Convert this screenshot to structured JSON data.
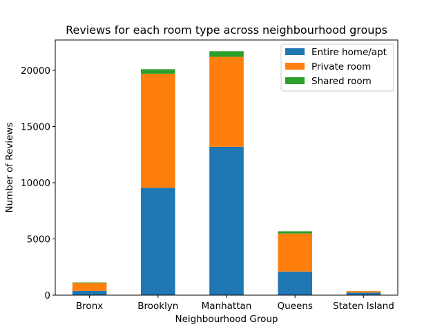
{
  "chart_data": {
    "type": "bar",
    "stacked": true,
    "title": "Reviews for each room type across neighbourhood groups",
    "xlabel": "Neighbourhood Group",
    "ylabel": "Number of Reviews",
    "categories": [
      "Bronx",
      "Brooklyn",
      "Manhattan",
      "Queens",
      "Staten Island"
    ],
    "series": [
      {
        "name": "Entire home/apt",
        "color": "#1f77b4",
        "values": [
          380,
          9550,
          13200,
          2100,
          220
        ]
      },
      {
        "name": "Private room",
        "color": "#ff7f0e",
        "values": [
          700,
          10150,
          8000,
          3380,
          130
        ]
      },
      {
        "name": "Shared room",
        "color": "#2ca02c",
        "values": [
          50,
          400,
          500,
          200,
          10
        ]
      }
    ],
    "ylim": [
      0,
      22700
    ],
    "yticks": [
      0,
      5000,
      10000,
      15000,
      20000
    ],
    "ytick_labels": [
      "0",
      "5000",
      "10000",
      "15000",
      "20000"
    ],
    "grid": false,
    "legend_position": "top-right"
  }
}
